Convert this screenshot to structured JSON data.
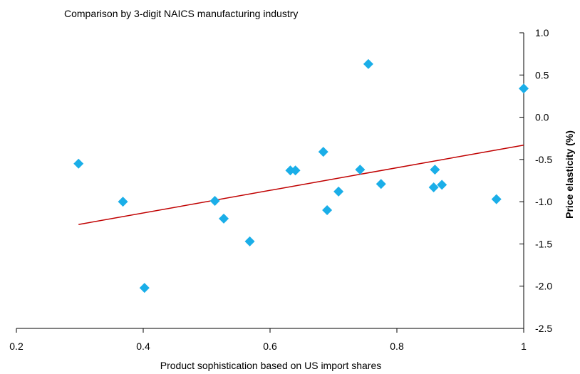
{
  "chart_data": {
    "type": "scatter",
    "title": "Comparison by 3-digit NAICS manufacturing industry",
    "xlabel": "Product sophistication based on US import shares",
    "ylabel": "Price elasticity (%)",
    "xlim": [
      0.2,
      1.0
    ],
    "ylim": [
      -2.5,
      1.0
    ],
    "xticks": [
      "0.2",
      "0.4",
      "0.6",
      "0.8",
      "1"
    ],
    "yticks": [
      "1.0",
      "0.5",
      "0.0",
      "-0.5",
      "-1.0",
      "-1.5",
      "-2.0",
      "-2.5"
    ],
    "marker_color": "#1aaee8",
    "trend_color": "#c00000",
    "y_axis_position": "right",
    "grid": false,
    "points": [
      {
        "x": 0.298,
        "y": -0.55
      },
      {
        "x": 0.368,
        "y": -1.0
      },
      {
        "x": 0.402,
        "y": -2.02
      },
      {
        "x": 0.513,
        "y": -0.99
      },
      {
        "x": 0.527,
        "y": -1.2
      },
      {
        "x": 0.568,
        "y": -1.47
      },
      {
        "x": 0.632,
        "y": -0.63
      },
      {
        "x": 0.64,
        "y": -0.63
      },
      {
        "x": 0.684,
        "y": -0.41
      },
      {
        "x": 0.69,
        "y": -1.1
      },
      {
        "x": 0.708,
        "y": -0.88
      },
      {
        "x": 0.742,
        "y": -0.62
      },
      {
        "x": 0.755,
        "y": 0.63
      },
      {
        "x": 0.775,
        "y": -0.79
      },
      {
        "x": 0.858,
        "y": -0.83
      },
      {
        "x": 0.86,
        "y": -0.62
      },
      {
        "x": 0.871,
        "y": -0.8
      },
      {
        "x": 0.957,
        "y": -0.97
      },
      {
        "x": 1.0,
        "y": 0.34
      }
    ],
    "trendline": {
      "x": [
        0.298,
        1.0
      ],
      "y": [
        -1.27,
        -0.33
      ]
    }
  }
}
